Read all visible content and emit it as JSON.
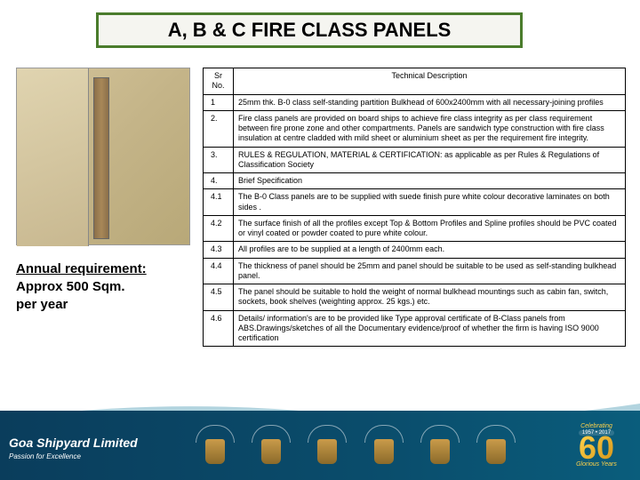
{
  "title": "A, B & C FIRE  CLASS PANELS",
  "requirement": {
    "heading": "Annual requirement:",
    "line1": "Approx 500 Sqm.",
    "line2": " per year"
  },
  "table": {
    "headers": {
      "sn": "Sr No.",
      "desc": "Technical Description"
    },
    "rows": [
      {
        "sn": "1",
        "desc": "25mm thk. B-0 class self-standing partition Bulkhead of   600x2400mm with all necessary-joining profiles"
      },
      {
        "sn": "2.",
        "desc": "Fire class panels are provided on board ships to achieve fire class integrity as per class requirement between fire prone zone and other compartments. Panels are sandwich type construction with fire class insulation at centre cladded with mild sheet or aluminium sheet as per the requirement fire integrity."
      },
      {
        "sn": "3.",
        "desc": "RULES & REGULATION, MATERIAL & CERTIFICATION: as applicable   as per Rules & Regulations of Classification Society"
      },
      {
        "sn": "4.",
        "desc": "Brief Specification"
      },
      {
        "sn": "4.1",
        "desc": "The B-0 Class panels are to be supplied with suede finish pure white colour decorative laminates on both sides ."
      },
      {
        "sn": "4.2",
        "desc": "The surface finish of all the profiles except Top & Bottom Profiles and Spline profiles should be PVC coated or vinyl coated or powder coated to pure white colour."
      },
      {
        "sn": "4.3",
        "desc": "All profiles are to be supplied at a length of 2400mm each."
      },
      {
        "sn": "4.4",
        "desc": "The thickness of panel should be 25mm and panel should be suitable to be used as self-standing bulkhead panel."
      },
      {
        "sn": "4.5",
        "desc": "The panel should be suitable to hold the weight of normal bulkhead mountings such as cabin fan, switch, sockets, book shelves (weighting approx. 25 kgs.) etc."
      },
      {
        "sn": "4.6",
        "desc": "Details/ information's are to be provided like Type approval certificate of B-Class panels from ABS.Drawings/sketches of all the Documentary evidence/proof of whether\n the firm is having ISO 9000 certification"
      }
    ]
  },
  "footer": {
    "brand": "Goa Shipyard Limited",
    "tagline": "Passion for Excellence",
    "anniversary": {
      "number": "60",
      "glorious": "Glorious Years",
      "celebrating": "Celebrating",
      "years": "1957 • 2017"
    },
    "wave_color": "#7fb8c9",
    "bg_gradient": [
      "#0a3d5c",
      "#0a5d7c"
    ]
  }
}
